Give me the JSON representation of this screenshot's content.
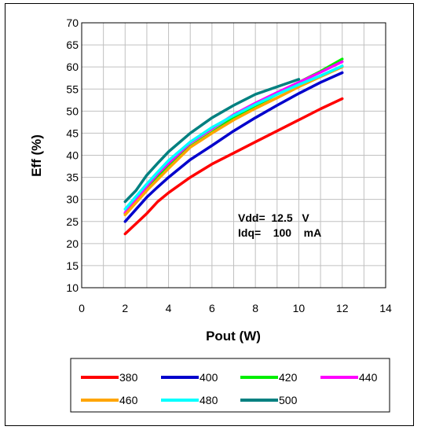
{
  "chart_data": {
    "type": "line",
    "title": "",
    "xlabel": "Pout (W)",
    "ylabel": "Eff (%)",
    "xlim": [
      0,
      14
    ],
    "ylim": [
      10,
      70
    ],
    "xticks": [
      0,
      2,
      4,
      6,
      8,
      10,
      12,
      14
    ],
    "yticks": [
      10,
      15,
      20,
      25,
      30,
      35,
      40,
      45,
      50,
      55,
      60,
      65,
      70
    ],
    "grid": true,
    "legend_position": "bottom",
    "annotations": [
      {
        "text": "Vdd=  12.5   V"
      },
      {
        "text": "Idq=    100    mA"
      }
    ],
    "series": [
      {
        "name": "380",
        "color": "#ff0000",
        "x": [
          2,
          3,
          3.5,
          4,
          5,
          6,
          7,
          8,
          9,
          10,
          11,
          12
        ],
        "y": [
          22.2,
          26.8,
          29.5,
          31.5,
          35,
          38,
          40.5,
          43,
          45.5,
          48,
          50.5,
          52.8
        ]
      },
      {
        "name": "400",
        "color": "#0000cc",
        "x": [
          2,
          3,
          3.5,
          4,
          5,
          6,
          7,
          8,
          9,
          10,
          11,
          12
        ],
        "y": [
          25,
          30.5,
          32.8,
          35,
          39,
          42.2,
          45.5,
          48.5,
          51.3,
          54,
          56.5,
          58.7
        ]
      },
      {
        "name": "420",
        "color": "#00ee00",
        "x": [
          2,
          3,
          3.5,
          4,
          5,
          6,
          7,
          8,
          9,
          10,
          11,
          12
        ],
        "y": [
          26.8,
          32.5,
          35,
          37.5,
          42,
          45.2,
          48.5,
          51.2,
          53.8,
          56.5,
          59,
          61.8
        ]
      },
      {
        "name": "440",
        "color": "#ff00ff",
        "x": [
          2,
          3,
          3.5,
          4,
          5,
          6,
          7,
          8,
          9,
          10,
          11,
          12
        ],
        "y": [
          27,
          33,
          35.8,
          38.2,
          42.8,
          46,
          49.2,
          51.8,
          54.2,
          56.5,
          58.8,
          61.2
        ]
      },
      {
        "name": "460",
        "color": "#ffa500",
        "x": [
          2,
          3,
          3.5,
          4,
          5,
          6,
          7,
          8,
          9,
          10,
          11,
          12
        ],
        "y": [
          26.5,
          32,
          34.5,
          37,
          41.8,
          45,
          48,
          50.6,
          53,
          55.5,
          57.8,
          60
        ]
      },
      {
        "name": "480",
        "color": "#00ffff",
        "x": [
          2,
          3,
          3.5,
          4,
          5,
          6,
          7,
          8,
          9,
          10,
          11,
          12
        ],
        "y": [
          27.8,
          33.5,
          36.2,
          38.8,
          43,
          46.3,
          49,
          51.5,
          53.8,
          56,
          58,
          60.2
        ]
      },
      {
        "name": "500",
        "color": "#008080",
        "x": [
          2,
          2.5,
          3,
          3.5,
          4,
          5,
          6,
          7,
          8,
          9,
          10
        ],
        "y": [
          29.5,
          32,
          35.5,
          38.2,
          40.8,
          45,
          48.5,
          51.3,
          53.8,
          55.5,
          57.2
        ]
      }
    ]
  }
}
